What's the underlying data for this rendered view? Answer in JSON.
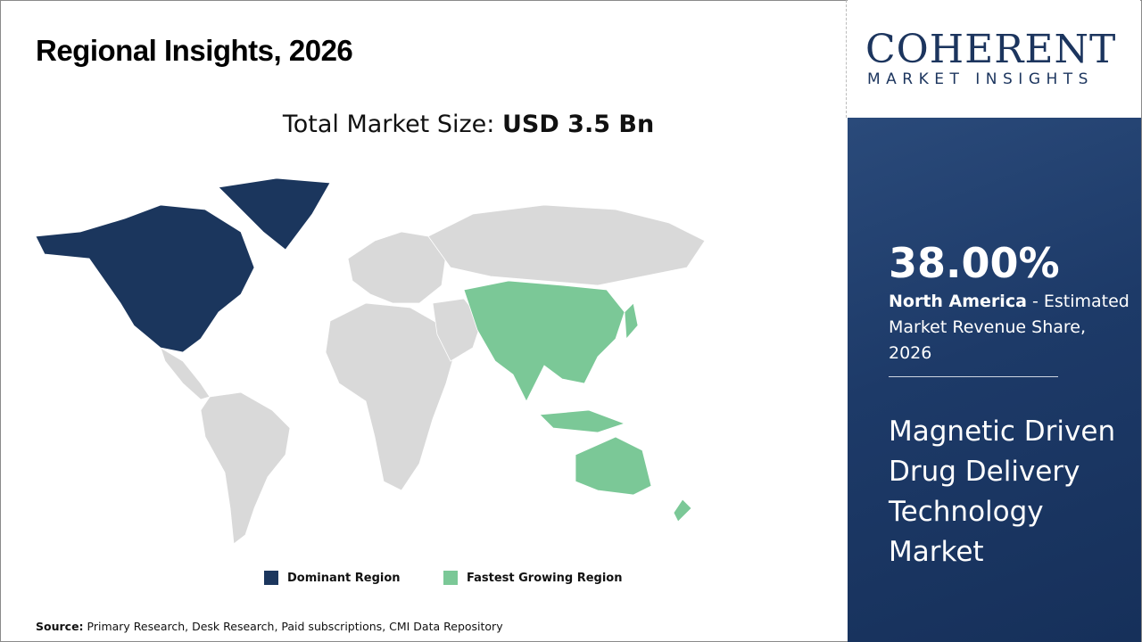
{
  "header": {
    "title": "Regional Insights, 2026"
  },
  "market_size": {
    "label": "Total Market Size:",
    "value": "USD 3.5 Bn"
  },
  "legend": [
    {
      "label": "Dominant Region",
      "color": "#1b365d"
    },
    {
      "label": "Fastest Growing Region",
      "color": "#7bc897"
    }
  ],
  "map": {
    "dominant_region": "North America",
    "fastest_growing_region": "Asia Pacific",
    "other_color": "#d9d9d9"
  },
  "source": {
    "label": "Source:",
    "text": "Primary Research, Desk Research, Paid subscriptions, CMI Data Repository"
  },
  "logo": {
    "name": "COHERENT",
    "tagline": "MARKET INSIGHTS"
  },
  "panel": {
    "share": "38.00%",
    "region": "North America",
    "description": " - Estimated Market Revenue Share, 2026",
    "market_name": "Magnetic Driven Drug Delivery Technology Market"
  }
}
